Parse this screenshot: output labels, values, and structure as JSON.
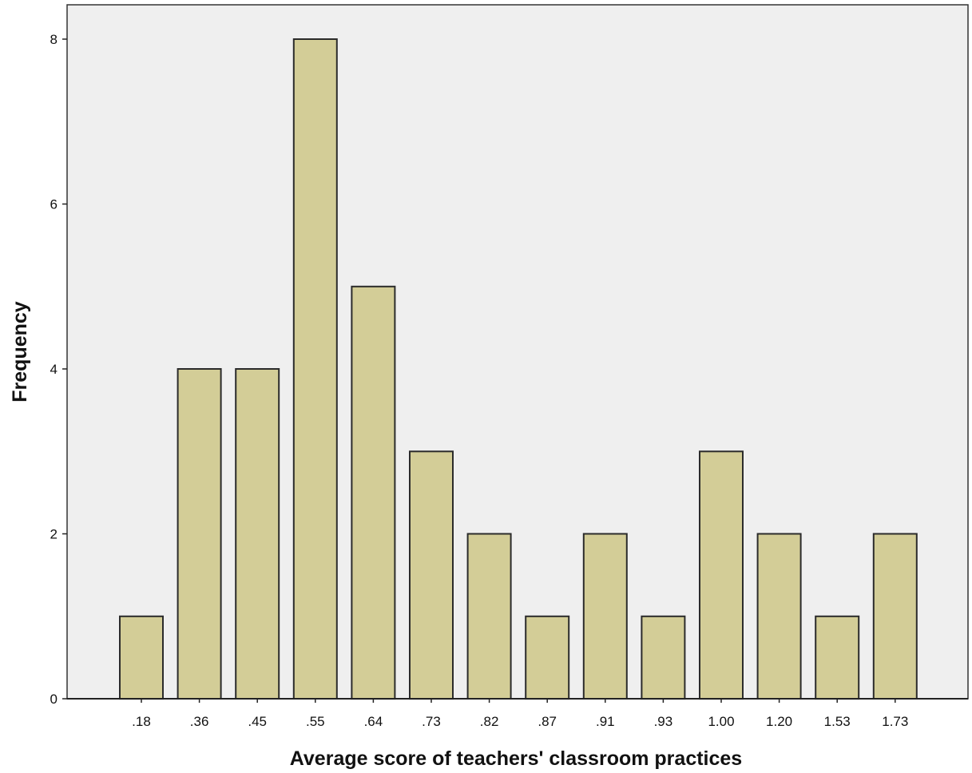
{
  "chart_data": {
    "type": "bar",
    "title": "",
    "xlabel": "Average score of teachers' classroom practices",
    "ylabel": "Frequency",
    "categories": [
      ".18",
      ".36",
      ".45",
      ".55",
      ".64",
      ".73",
      ".82",
      ".87",
      ".91",
      ".93",
      "1.00",
      "1.20",
      "1.53",
      "1.73"
    ],
    "values": [
      1,
      4,
      4,
      8,
      5,
      3,
      2,
      1,
      2,
      1,
      3,
      2,
      1,
      2
    ],
    "ylim": [
      0,
      8.5
    ],
    "yticks": [
      0,
      2,
      4,
      6,
      8
    ],
    "grid": false,
    "colors": {
      "bar_fill": "#d3cd97",
      "bar_stroke": "#2b2b2b",
      "plot_background": "#efefef",
      "frame": "#333333"
    }
  }
}
